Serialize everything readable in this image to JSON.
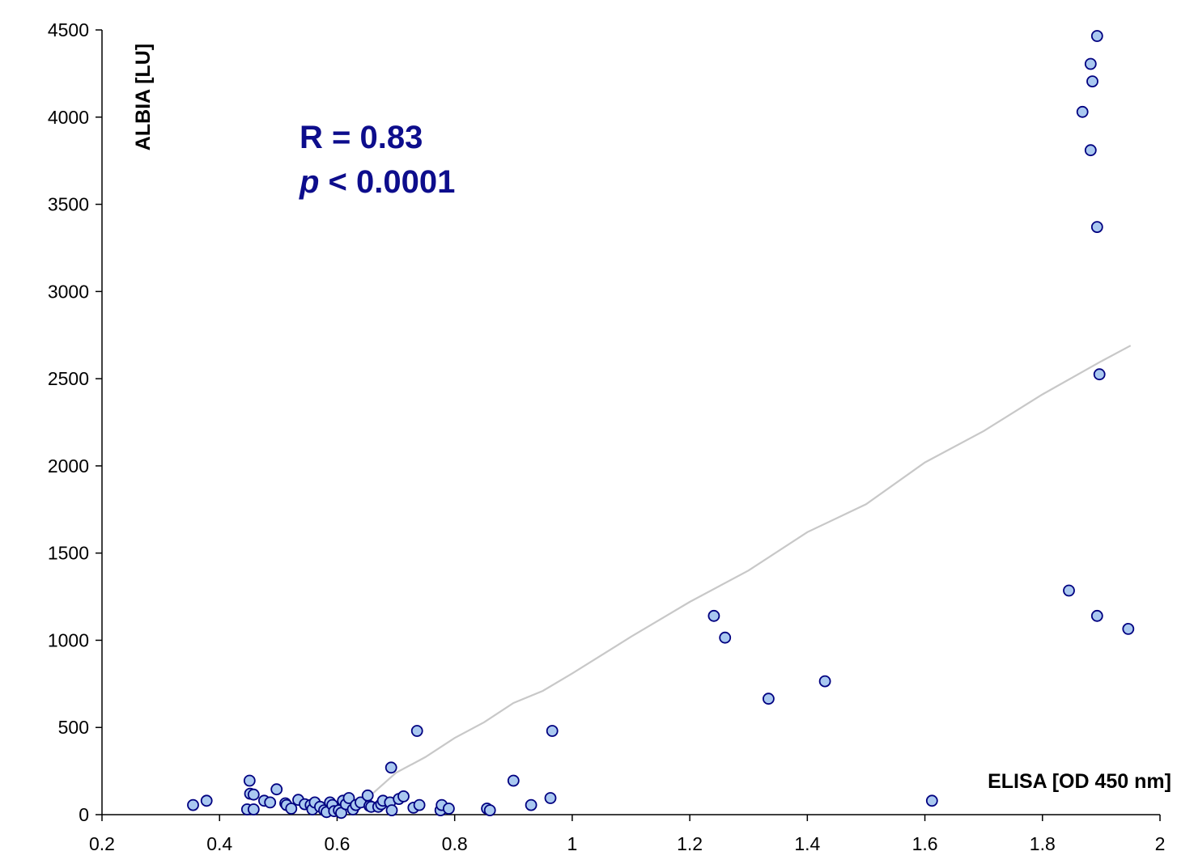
{
  "chart_data": {
    "type": "scatter",
    "title": "",
    "xlabel": "ELISA [OD 450 nm]",
    "ylabel": "ALBIA [LU]",
    "xlim": [
      0.2,
      2
    ],
    "ylim": [
      0,
      4500
    ],
    "xticks": [
      "0.2",
      "0.4",
      "0.6",
      "0.8",
      "1",
      "1.2",
      "1.4",
      "1.6",
      "1.8",
      "2"
    ],
    "yticks": [
      "0",
      "500",
      "1000",
      "1500",
      "2000",
      "2500",
      "3000",
      "3500",
      "4000",
      "4500"
    ],
    "grid": false,
    "legend": "none",
    "annotations": {
      "r_line": "R = 0.83",
      "p_symbol": "p",
      "p_rest": " < 0.0001"
    },
    "colors": {
      "marker_fill": "#a9c8f0",
      "marker_stroke": "#000080",
      "trend_line": "#c8c8c8",
      "annotation": "#0d0d8c",
      "axis": "#000000"
    },
    "points": [
      [
        0.355,
        55
      ],
      [
        0.378,
        80
      ],
      [
        0.447,
        30
      ],
      [
        0.451,
        195
      ],
      [
        0.452,
        120
      ],
      [
        0.458,
        115
      ],
      [
        0.458,
        30
      ],
      [
        0.476,
        80
      ],
      [
        0.486,
        70
      ],
      [
        0.497,
        145
      ],
      [
        0.512,
        65
      ],
      [
        0.514,
        55
      ],
      [
        0.522,
        35
      ],
      [
        0.534,
        85
      ],
      [
        0.545,
        60
      ],
      [
        0.555,
        55
      ],
      [
        0.558,
        30
      ],
      [
        0.562,
        70
      ],
      [
        0.571,
        45
      ],
      [
        0.578,
        25
      ],
      [
        0.582,
        15
      ],
      [
        0.588,
        70
      ],
      [
        0.592,
        55
      ],
      [
        0.595,
        20
      ],
      [
        0.603,
        25
      ],
      [
        0.607,
        10
      ],
      [
        0.61,
        80
      ],
      [
        0.615,
        60
      ],
      [
        0.62,
        95
      ],
      [
        0.627,
        30
      ],
      [
        0.632,
        55
      ],
      [
        0.64,
        70
      ],
      [
        0.652,
        110
      ],
      [
        0.655,
        50
      ],
      [
        0.658,
        45
      ],
      [
        0.67,
        45
      ],
      [
        0.675,
        60
      ],
      [
        0.678,
        80
      ],
      [
        0.69,
        70
      ],
      [
        0.692,
        270
      ],
      [
        0.693,
        25
      ],
      [
        0.705,
        90
      ],
      [
        0.713,
        105
      ],
      [
        0.73,
        40
      ],
      [
        0.736,
        480
      ],
      [
        0.74,
        55
      ],
      [
        0.776,
        25
      ],
      [
        0.778,
        55
      ],
      [
        0.79,
        35
      ],
      [
        0.855,
        35
      ],
      [
        0.86,
        25
      ],
      [
        0.9,
        195
      ],
      [
        0.93,
        55
      ],
      [
        0.963,
        95
      ],
      [
        0.966,
        480
      ],
      [
        1.241,
        1140
      ],
      [
        1.26,
        1015
      ],
      [
        1.334,
        665
      ],
      [
        1.43,
        765
      ],
      [
        1.612,
        80
      ],
      [
        1.845,
        1285
      ],
      [
        1.868,
        4030
      ],
      [
        1.882,
        3810
      ],
      [
        1.882,
        4305
      ],
      [
        1.885,
        4205
      ],
      [
        1.893,
        4465
      ],
      [
        1.893,
        3370
      ],
      [
        1.893,
        1140
      ],
      [
        1.897,
        2525
      ],
      [
        1.946,
        1065
      ]
    ],
    "trendline": [
      [
        0.6,
        20
      ],
      [
        0.65,
        90
      ],
      [
        0.7,
        240
      ],
      [
        0.75,
        330
      ],
      [
        0.8,
        440
      ],
      [
        0.85,
        530
      ],
      [
        0.9,
        640
      ],
      [
        0.95,
        710
      ],
      [
        1.0,
        810
      ],
      [
        1.1,
        1020
      ],
      [
        1.2,
        1220
      ],
      [
        1.3,
        1400
      ],
      [
        1.4,
        1620
      ],
      [
        1.5,
        1780
      ],
      [
        1.6,
        2020
      ],
      [
        1.7,
        2200
      ],
      [
        1.8,
        2410
      ],
      [
        1.9,
        2600
      ],
      [
        1.95,
        2690
      ]
    ]
  }
}
